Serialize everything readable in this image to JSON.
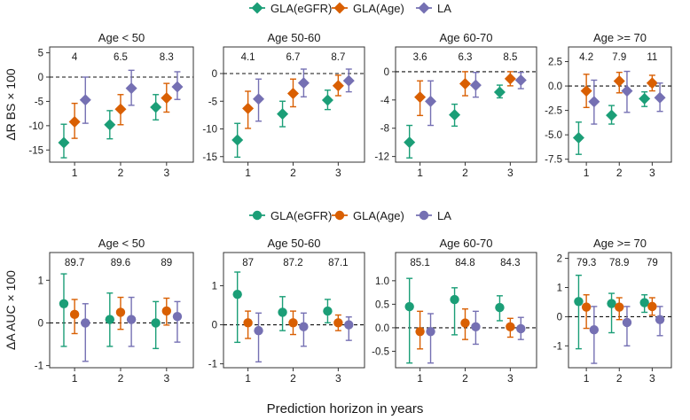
{
  "series_names": [
    "GLA(eGFR)",
    "GLA(Age)",
    "LA"
  ],
  "colors": {
    "GLA(eGFR)": "#1b9e77",
    "GLA(Age)": "#d95f02",
    "LA": "#7570b3"
  },
  "x_axis_label": "Prediction horizon in years",
  "chart_data": [
    {
      "type": "scatter",
      "row": "bs",
      "title": "Age < 50",
      "ylabel": "ΔR BS × 100",
      "marker": "diamond",
      "categories": [
        "1",
        "2",
        "3"
      ],
      "top_labels": [
        "4",
        "6.5",
        "8.3"
      ],
      "ylim": [
        -17.5,
        6.2
      ],
      "yticks": [
        5,
        0,
        -5,
        -10,
        -15
      ],
      "ytick_labels": [
        "5",
        "0",
        "-5",
        "-10",
        "-15"
      ],
      "series": [
        {
          "name": "GLA(eGFR)",
          "values": [
            -13.5,
            -9.8,
            -6.2
          ],
          "lower": [
            -16.6,
            -12.7,
            -8.8
          ],
          "upper": [
            -9.7,
            -6.9,
            -3.6
          ]
        },
        {
          "name": "GLA(Age)",
          "values": [
            -9.2,
            -6.6,
            -4.3
          ],
          "lower": [
            -12.6,
            -9.8,
            -7.2
          ],
          "upper": [
            -5.4,
            -3.6,
            -1.3
          ]
        },
        {
          "name": "LA",
          "values": [
            -4.7,
            -2.3,
            -2.0
          ],
          "lower": [
            -9.5,
            -5.8,
            -4.6
          ],
          "upper": [
            0.0,
            1.4,
            1.1
          ]
        }
      ]
    },
    {
      "type": "scatter",
      "row": "bs",
      "title": "Age 50-60",
      "ylabel": "",
      "marker": "diamond",
      "categories": [
        "1",
        "2",
        "3"
      ],
      "top_labels": [
        "4.1",
        "6.7",
        "8.7"
      ],
      "ylim": [
        -16.0,
        4.8
      ],
      "yticks": [
        0,
        -5,
        -10,
        -15
      ],
      "ytick_labels": [
        "0",
        "-5",
        "-10",
        "-15"
      ],
      "series": [
        {
          "name": "GLA(eGFR)",
          "values": [
            -12.0,
            -7.3,
            -4.8
          ],
          "lower": [
            -15.1,
            -9.6,
            -6.5
          ],
          "upper": [
            -9.0,
            -5.0,
            -3.0
          ]
        },
        {
          "name": "GLA(Age)",
          "values": [
            -6.3,
            -3.6,
            -2.2
          ],
          "lower": [
            -9.9,
            -6.0,
            -4.0
          ],
          "upper": [
            -3.2,
            -1.0,
            -0.3
          ]
        },
        {
          "name": "LA",
          "values": [
            -4.6,
            -1.7,
            -1.3
          ],
          "lower": [
            -8.6,
            -4.2,
            -3.3
          ],
          "upper": [
            -1.0,
            0.8,
            0.8
          ]
        }
      ]
    },
    {
      "type": "scatter",
      "row": "bs",
      "title": "Age 60-70",
      "ylabel": "",
      "marker": "diamond",
      "categories": [
        "1",
        "2",
        "3"
      ],
      "top_labels": [
        "3.6",
        "6.3",
        "8.5"
      ],
      "ylim": [
        -12.8,
        3.5
      ],
      "yticks": [
        0,
        -4,
        -8,
        -12
      ],
      "ytick_labels": [
        "0",
        "-4",
        "-8",
        "-12"
      ],
      "series": [
        {
          "name": "GLA(eGFR)",
          "values": [
            -10.0,
            -6.1,
            -2.9
          ],
          "lower": [
            -12.2,
            -7.7,
            -3.7
          ],
          "upper": [
            -7.6,
            -4.6,
            -1.9
          ]
        },
        {
          "name": "GLA(Age)",
          "values": [
            -3.6,
            -1.7,
            -1.0
          ],
          "lower": [
            -6.2,
            -3.4,
            -2.0
          ],
          "upper": [
            -1.3,
            0.0,
            0.0
          ]
        },
        {
          "name": "LA",
          "values": [
            -4.2,
            -1.9,
            -1.2
          ],
          "lower": [
            -7.6,
            -3.6,
            -2.4
          ],
          "upper": [
            -1.3,
            -0.1,
            -0.1
          ]
        }
      ]
    },
    {
      "type": "scatter",
      "row": "bs",
      "title": "Age >= 70",
      "ylabel": "",
      "marker": "diamond",
      "categories": [
        "1",
        "2",
        "3"
      ],
      "top_labels": [
        "4.2",
        "7.9",
        "11"
      ],
      "ylim": [
        -7.8,
        4.0
      ],
      "yticks": [
        2.5,
        0,
        -2.5,
        -5,
        -7.5
      ],
      "ytick_labels": [
        "2.5",
        "0.0",
        "-2.5",
        "-5.0",
        "-7.5"
      ],
      "series": [
        {
          "name": "GLA(eGFR)",
          "values": [
            -5.3,
            -3.0,
            -1.3
          ],
          "lower": [
            -7.0,
            -3.9,
            -2.1
          ],
          "upper": [
            -3.7,
            -2.0,
            -0.6
          ]
        },
        {
          "name": "GLA(Age)",
          "values": [
            -0.5,
            0.5,
            0.3
          ],
          "lower": [
            -2.2,
            -0.7,
            -0.5
          ],
          "upper": [
            1.2,
            1.4,
            1.1
          ]
        },
        {
          "name": "LA",
          "values": [
            -1.6,
            -0.5,
            -1.2
          ],
          "lower": [
            -3.9,
            -2.7,
            -2.6
          ],
          "upper": [
            0.6,
            1.5,
            0.3
          ]
        }
      ]
    },
    {
      "type": "scatter",
      "row": "auc",
      "title": "Age < 50",
      "ylabel": "ΔA AUC × 100",
      "marker": "circle",
      "categories": [
        "1",
        "2",
        "3"
      ],
      "top_labels": [
        "89.7",
        "89.6",
        "89"
      ],
      "ylim": [
        -1.05,
        1.65
      ],
      "yticks": [
        1,
        0,
        -1
      ],
      "ytick_labels": [
        "1",
        "0",
        "-1"
      ],
      "series": [
        {
          "name": "GLA(eGFR)",
          "values": [
            0.45,
            0.08,
            0.0
          ],
          "lower": [
            -0.55,
            -0.55,
            -0.6
          ],
          "upper": [
            1.15,
            0.7,
            0.5
          ]
        },
        {
          "name": "GLA(Age)",
          "values": [
            0.2,
            0.25,
            0.28
          ],
          "lower": [
            -0.25,
            -0.15,
            -0.05
          ],
          "upper": [
            0.55,
            0.6,
            0.58
          ]
        },
        {
          "name": "LA",
          "values": [
            0.0,
            0.08,
            0.15
          ],
          "lower": [
            -0.9,
            -0.55,
            -0.45
          ],
          "upper": [
            0.45,
            0.6,
            0.5
          ]
        }
      ]
    },
    {
      "type": "scatter",
      "row": "auc",
      "title": "Age 50-60",
      "ylabel": "",
      "marker": "circle",
      "categories": [
        "1",
        "2",
        "3"
      ],
      "top_labels": [
        "87",
        "87.2",
        "87.1"
      ],
      "ylim": [
        -1.1,
        1.85
      ],
      "yticks": [
        1,
        0,
        -1
      ],
      "ytick_labels": [
        "1",
        "0",
        "-1"
      ],
      "series": [
        {
          "name": "GLA(eGFR)",
          "values": [
            0.78,
            0.32,
            0.35
          ],
          "lower": [
            -0.45,
            -0.15,
            0.05
          ],
          "upper": [
            1.35,
            0.72,
            0.65
          ]
        },
        {
          "name": "GLA(Age)",
          "values": [
            0.05,
            0.05,
            0.05
          ],
          "lower": [
            -0.35,
            -0.25,
            -0.15
          ],
          "upper": [
            0.35,
            0.35,
            0.25
          ]
        },
        {
          "name": "LA",
          "values": [
            -0.15,
            -0.05,
            0.0
          ],
          "lower": [
            -0.95,
            -0.55,
            -0.4
          ],
          "upper": [
            0.3,
            0.3,
            0.2
          ]
        }
      ]
    },
    {
      "type": "scatter",
      "row": "auc",
      "title": "Age 60-70",
      "ylabel": "",
      "marker": "circle",
      "categories": [
        "1",
        "2",
        "3"
      ],
      "top_labels": [
        "85.1",
        "84.8",
        "84.3"
      ],
      "ylim": [
        -0.85,
        1.6
      ],
      "yticks": [
        1.0,
        0.5,
        0.0,
        -0.5
      ],
      "ytick_labels": [
        "1.0",
        "0.5",
        "0.0",
        "-0.5"
      ],
      "series": [
        {
          "name": "GLA(eGFR)",
          "values": [
            0.45,
            0.6,
            0.43
          ],
          "lower": [
            -0.75,
            -0.15,
            0.15
          ],
          "upper": [
            1.05,
            0.85,
            0.68
          ]
        },
        {
          "name": "GLA(Age)",
          "values": [
            -0.08,
            0.1,
            0.02
          ],
          "lower": [
            -0.45,
            -0.25,
            -0.2
          ],
          "upper": [
            0.35,
            0.4,
            0.2
          ]
        },
        {
          "name": "LA",
          "values": [
            -0.08,
            0.02,
            -0.02
          ],
          "lower": [
            -0.75,
            -0.35,
            -0.25
          ],
          "upper": [
            0.3,
            0.35,
            0.22
          ]
        }
      ]
    },
    {
      "type": "scatter",
      "row": "auc",
      "title": "Age >= 70",
      "ylabel": "",
      "marker": "circle",
      "categories": [
        "1",
        "2",
        "3"
      ],
      "top_labels": [
        "79.3",
        "78.9",
        "79"
      ],
      "ylim": [
        -1.75,
        2.2
      ],
      "yticks": [
        2,
        1,
        0,
        -1
      ],
      "ytick_labels": [
        "2",
        "1",
        "0",
        "-1"
      ],
      "series": [
        {
          "name": "GLA(eGFR)",
          "values": [
            0.52,
            0.45,
            0.48
          ],
          "lower": [
            -1.1,
            -0.55,
            0.15
          ],
          "upper": [
            1.42,
            0.8,
            0.75
          ]
        },
        {
          "name": "GLA(Age)",
          "values": [
            0.33,
            0.33,
            0.35
          ],
          "lower": [
            -0.4,
            -0.1,
            0.05
          ],
          "upper": [
            0.75,
            0.65,
            0.65
          ]
        },
        {
          "name": "LA",
          "values": [
            -0.45,
            -0.2,
            -0.1
          ],
          "lower": [
            -1.6,
            -1.0,
            -0.65
          ],
          "upper": [
            0.35,
            0.35,
            0.35
          ]
        }
      ]
    }
  ]
}
